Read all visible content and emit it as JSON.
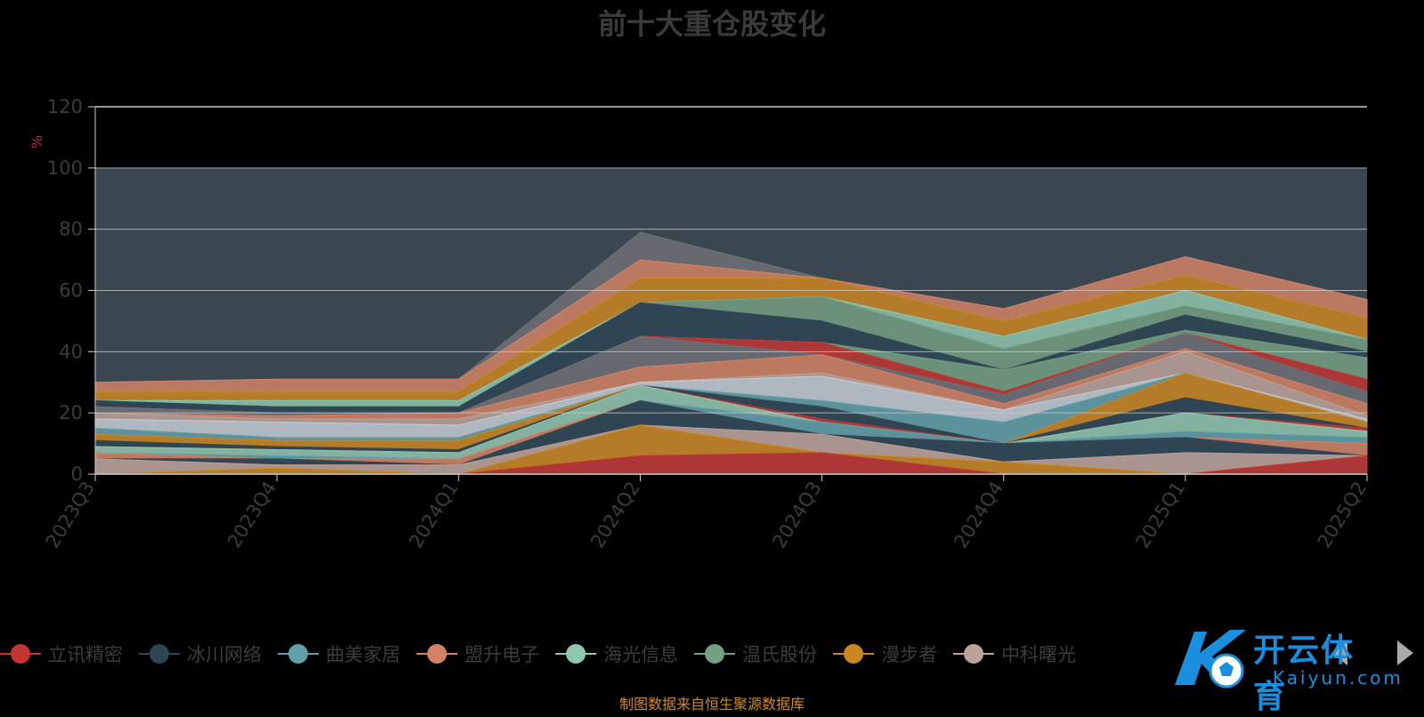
{
  "title": "前十大重仓股变化",
  "source_note": "制图数据来自恒生聚源数据库",
  "watermark": {
    "brand": "开云体育",
    "sub": "Kaiyun.com"
  },
  "colors": {
    "background": "#000000",
    "plot_area": "#3a4750",
    "grid": "#c8c8c8",
    "axis_text": "#3c3c3c",
    "title": "#3a3a3a",
    "ylabel": "#c0282d",
    "source": "#d08a1e"
  },
  "chart_data": {
    "type": "area",
    "stacked": true,
    "title": "前十大重仓股变化",
    "ylabel": "%",
    "ylim": [
      0,
      120
    ],
    "yticks": [
      0,
      20,
      40,
      60,
      80,
      100,
      120
    ],
    "grid": true,
    "legend_position": "bottom",
    "categories": [
      "2023Q3",
      "2023Q4",
      "2024Q1",
      "2024Q2",
      "2024Q3",
      "2024Q4",
      "2025Q1",
      "2025Q2"
    ],
    "series": [
      {
        "name": "立讯精密",
        "color": "#c23531",
        "values": [
          0,
          0,
          0,
          6,
          7,
          0,
          0,
          6
        ]
      },
      {
        "name": "冰川网络",
        "color": "#2f4554",
        "values": [
          5,
          3,
          3,
          10,
          6,
          4,
          0,
          0
        ]
      },
      {
        "name": "曲美家居",
        "color": "#61a0a8",
        "values": [
          0,
          0,
          0,
          0,
          0,
          0,
          0,
          5
        ]
      },
      {
        "name": "盟升电子",
        "color": "#d48265",
        "values": [
          2,
          3,
          3,
          8,
          4,
          6,
          7,
          0
        ]
      },
      {
        "name": "海光信息",
        "color": "#91c7ae",
        "values": [
          0,
          0,
          0,
          0,
          0,
          0,
          5,
          0
        ]
      },
      {
        "name": "温氏股份",
        "color": "#749f83",
        "values": [
          0,
          0,
          0,
          0,
          0,
          0,
          0,
          0
        ]
      },
      {
        "name": "漫步者",
        "color": "#ca8622",
        "values": [
          0,
          0,
          0,
          10,
          0,
          0,
          0,
          0
        ]
      },
      {
        "name": "中科曙光",
        "color": "#bda29a",
        "values": [
          2,
          2,
          2,
          0,
          0,
          0,
          0,
          0
        ]
      },
      {
        "name": "",
        "color": "#6e7074",
        "values": [
          3,
          3,
          3,
          0,
          0,
          0,
          0,
          0
        ]
      },
      {
        "name": "",
        "color": "#546570",
        "values": [
          0,
          0,
          0,
          0,
          0,
          0,
          0,
          0
        ]
      },
      {
        "name": "",
        "color": "#c4ccd3",
        "values": [
          0,
          0,
          0,
          0,
          0,
          0,
          0,
          0
        ]
      }
    ],
    "areas": [
      {
        "color": "#c23531",
        "values": [
          0,
          0,
          0,
          6,
          7,
          0,
          0,
          6
        ]
      },
      {
        "color": "#ca8622",
        "values": [
          0,
          2,
          0,
          10,
          0,
          4,
          0,
          0
        ]
      },
      {
        "color": "#bda29a",
        "values": [
          5,
          1,
          3,
          0,
          6,
          0,
          7,
          0
        ]
      },
      {
        "color": "#2f4554",
        "values": [
          0,
          2,
          0,
          8,
          0,
          6,
          5,
          0
        ]
      },
      {
        "color": "#61a0a8",
        "values": [
          2,
          3,
          3,
          0,
          3,
          0,
          0,
          5
        ]
      },
      {
        "color": "#749f83",
        "values": [
          0,
          0,
          0,
          0,
          0,
          0,
          0,
          0
        ]
      },
      {
        "color": "#c4ccd3",
        "values": [
          0,
          0,
          0,
          0,
          0,
          0,
          0,
          0
        ]
      },
      {
        "color": "#2f4554",
        "values": [
          0,
          0,
          0,
          0,
          0,
          0,
          8,
          0
        ]
      },
      {
        "color": "#6e7074",
        "values": [
          0,
          0,
          3,
          0,
          0,
          0,
          0,
          0
        ]
      }
    ],
    "layers": [
      {
        "color": "#c23531",
        "cum": [
          0,
          0,
          0,
          6,
          7,
          0,
          0,
          6
        ]
      },
      {
        "color": "#ca8622",
        "cum": [
          0,
          2,
          0,
          16,
          7,
          4,
          0,
          6
        ]
      },
      {
        "color": "#bda29a",
        "cum": [
          5,
          3,
          3,
          16,
          13,
          4,
          7,
          6
        ]
      },
      {
        "color": "#2f4554",
        "cum": [
          5,
          5,
          3,
          24,
          13,
          10,
          12,
          6
        ]
      },
      {
        "color": "#d48265",
        "cum": [
          7,
          5,
          5,
          24,
          13,
          10,
          12,
          10
        ]
      },
      {
        "color": "#61a0a8",
        "cum": [
          7,
          6,
          5,
          24,
          17,
          10,
          14,
          12
        ]
      },
      {
        "color": "#91c7ae",
        "cum": [
          9,
          8,
          7,
          29,
          17,
          10,
          20,
          14
        ]
      },
      {
        "color": "#c23531",
        "cum": [
          9,
          8,
          7,
          29,
          18,
          10,
          20,
          15
        ]
      },
      {
        "color": "#2f4554",
        "cum": [
          11,
          9,
          8,
          29,
          22,
          10,
          25,
          15
        ]
      },
      {
        "color": "#ca8622",
        "cum": [
          13,
          11,
          11,
          29,
          22,
          10,
          33,
          17
        ]
      },
      {
        "color": "#61a0a8",
        "cum": [
          15,
          12,
          12,
          29,
          24,
          17,
          33,
          17
        ]
      },
      {
        "color": "#c4ccd3",
        "cum": [
          18,
          17,
          16,
          30,
          32,
          21,
          33,
          18
        ]
      },
      {
        "color": "#bda29a",
        "cum": [
          20,
          18,
          18,
          30,
          33,
          21,
          40,
          19
        ]
      },
      {
        "color": "#d48265",
        "cum": [
          20,
          19,
          20,
          35,
          39,
          23,
          41,
          23
        ]
      },
      {
        "color": "#6e7074",
        "cum": [
          22,
          20,
          20,
          45,
          39,
          26,
          46,
          27
        ]
      },
      {
        "color": "#c23531",
        "cum": [
          22,
          20,
          20,
          45,
          43,
          27,
          46,
          31
        ]
      },
      {
        "color": "#749f83",
        "cum": [
          22,
          20,
          20,
          45,
          43,
          34,
          47,
          38
        ]
      },
      {
        "color": "#2f4554",
        "cum": [
          24,
          22,
          22,
          56,
          50,
          34,
          52,
          40
        ]
      },
      {
        "color": "#749f83",
        "cum": [
          24,
          22,
          22,
          56,
          58,
          41,
          55,
          44
        ]
      },
      {
        "color": "#91c7ae",
        "cum": [
          24,
          24,
          24,
          56,
          58,
          45,
          60,
          44
        ]
      },
      {
        "color": "#61a0a8",
        "cum": [
          24,
          24,
          24,
          56,
          58,
          45,
          60,
          44
        ]
      },
      {
        "color": "#ca8622",
        "cum": [
          27,
          27,
          27,
          64,
          64,
          50,
          65,
          51
        ]
      },
      {
        "color": "#d48265",
        "cum": [
          30,
          31,
          31,
          70,
          64,
          54,
          71,
          57
        ]
      },
      {
        "color": "#6e7074",
        "cum": [
          30,
          31,
          31,
          79,
          64,
          54,
          71,
          57
        ]
      }
    ]
  }
}
